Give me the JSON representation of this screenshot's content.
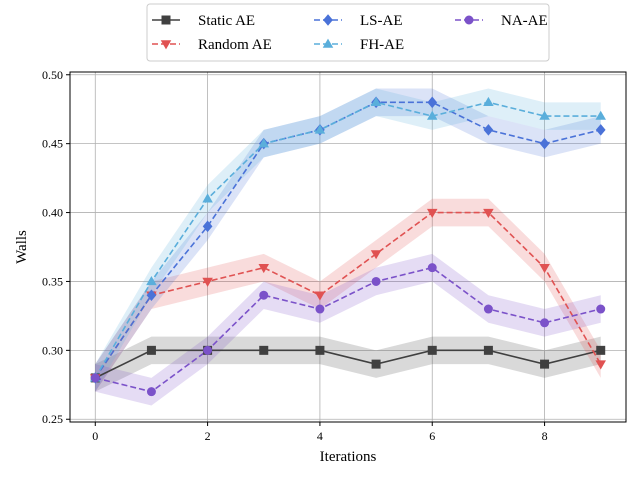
{
  "chart_data": {
    "type": "line",
    "xlabel": "Iterations",
    "ylabel": "Walls",
    "xlim": [
      -0.45,
      9.45
    ],
    "ylim": [
      0.248,
      0.502
    ],
    "x_ticks": [
      0,
      2,
      4,
      6,
      8
    ],
    "y_ticks": [
      0.25,
      0.3,
      0.35,
      0.4,
      0.45,
      0.5
    ],
    "y_tick_labels": [
      "0.25",
      "0.30",
      "0.35",
      "0.40",
      "0.45",
      "0.50"
    ],
    "grid": true,
    "legend": {
      "placement": "top-center-outside",
      "columns": 3
    },
    "x": [
      0,
      1,
      2,
      3,
      4,
      5,
      6,
      7,
      8,
      9
    ],
    "series": [
      {
        "name": "Static AE",
        "color": "#404040",
        "marker": "square",
        "dash": "solid",
        "values": [
          0.28,
          0.3,
          0.3,
          0.3,
          0.3,
          0.29,
          0.3,
          0.3,
          0.29,
          0.3
        ],
        "band": 0.01
      },
      {
        "name": "Random AE",
        "color": "#e05252",
        "marker": "triangle-down",
        "dash": "dashed",
        "values": [
          0.28,
          0.34,
          0.35,
          0.36,
          0.34,
          0.37,
          0.4,
          0.4,
          0.36,
          0.29
        ],
        "band": 0.01
      },
      {
        "name": "LS-AE",
        "color": "#4a72d8",
        "marker": "diamond",
        "dash": "dashed",
        "values": [
          0.28,
          0.34,
          0.39,
          0.45,
          0.46,
          0.48,
          0.48,
          0.46,
          0.45,
          0.46
        ],
        "band": 0.01
      },
      {
        "name": "FH-AE",
        "color": "#5aaedb",
        "marker": "triangle-up",
        "dash": "dashed",
        "values": [
          0.28,
          0.35,
          0.41,
          0.45,
          0.46,
          0.48,
          0.47,
          0.48,
          0.47,
          0.47
        ],
        "band": 0.01
      },
      {
        "name": "NA-AE",
        "color": "#7b52c9",
        "marker": "circle",
        "dash": "dashed",
        "values": [
          0.28,
          0.27,
          0.3,
          0.34,
          0.33,
          0.35,
          0.36,
          0.33,
          0.32,
          0.33
        ],
        "band": 0.01
      }
    ]
  }
}
